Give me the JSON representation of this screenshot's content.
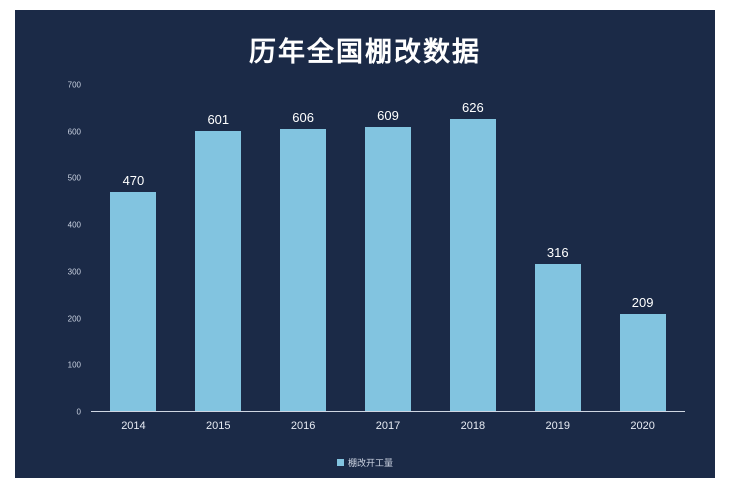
{
  "title": "历年全国棚改数据",
  "colors": {
    "background": "#1b2a47",
    "bar": "#82c4e0",
    "axis_line": "#cfd6e2",
    "title_text": "#ffffff",
    "tick_text": "#c9d1e0"
  },
  "chart_data": {
    "type": "bar",
    "title": "历年全国棚改数据",
    "categories": [
      "2014",
      "2015",
      "2016",
      "2017",
      "2018",
      "2019",
      "2020"
    ],
    "values": [
      470,
      601,
      606,
      609,
      626,
      316,
      209
    ],
    "xlabel": "",
    "ylabel": "",
    "ylim": [
      0,
      700
    ],
    "yticks": [
      0,
      100,
      200,
      300,
      400,
      500,
      600,
      700
    ],
    "legend": [
      "棚改开工量"
    ],
    "legend_position": "bottom",
    "grid": false
  }
}
